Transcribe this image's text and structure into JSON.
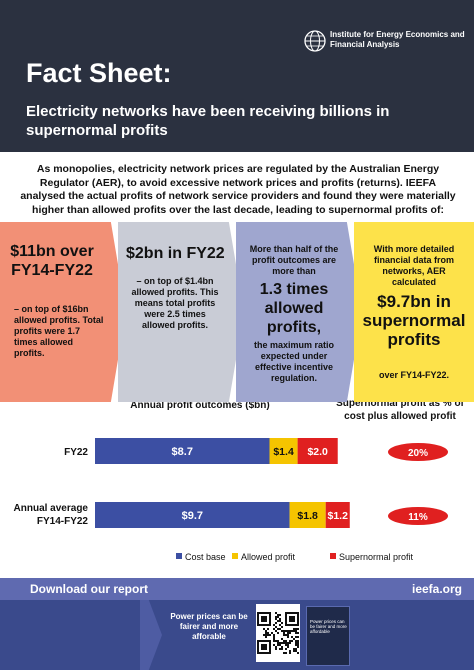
{
  "header": {
    "org": "Institute for Energy Economics and Financial Analysis",
    "title": "Fact Sheet:",
    "subtitle": "Electricity networks have been receiving billions in supernormal profits"
  },
  "intro": "As monopolies, electricity network prices are regulated by the Australian Energy Regulator (AER), to avoid excessive network prices and profits (returns). IEEFA analysed the actual profits of network service providers and found they were materially higher than allowed profits over the last decade, leading to supernormal profits of:",
  "panels": [
    {
      "big": "$11bn over FY14-FY22",
      "small": "– on top of $16bn allowed profits. Total profits were 1.7 times allowed profits."
    },
    {
      "big": "$2bn in FY22",
      "small": "– on top of $1.4bn allowed profits. This means total profits were 2.5 times allowed profits."
    },
    {
      "text1": "More than half of the profit outcomes are more than",
      "big": "1.3 times allowed profits,",
      "text2": "the maximum ratio expected under effective incentive regulation."
    },
    {
      "text1": "With more detailed financial data from networks, AER calculated",
      "big": "$9.7bn in supernormal profits",
      "text2": "over FY14-FY22."
    }
  ],
  "colors": {
    "cost": "#3c4fa3",
    "allowed": "#f5c400",
    "supernormal": "#e02020",
    "header_bg": "#2b3140"
  },
  "chart_data": {
    "type": "bar",
    "orientation": "horizontal",
    "stacked": true,
    "title": "Annual profit outcomes ($bn)",
    "categories": [
      "FY22",
      "Annual average FY14-FY22"
    ],
    "series": [
      {
        "name": "Cost base",
        "values": [
          8.7,
          9.7
        ],
        "labels": [
          "$8.7",
          "$9.7"
        ],
        "color": "#3c4fa3"
      },
      {
        "name": "Allowed profit",
        "values": [
          1.4,
          1.8
        ],
        "labels": [
          "$1.4",
          "$1.8"
        ],
        "color": "#f5c400"
      },
      {
        "name": "Supernormal profit",
        "values": [
          2.0,
          1.2
        ],
        "labels": [
          "$2.0",
          "$1.2"
        ],
        "color": "#e02020"
      }
    ],
    "side_title": "Supernormal profit as % of cost plus allowed profit",
    "side_values": [
      "20%",
      "11%"
    ],
    "legend_position": "bottom"
  },
  "footer": {
    "download": "Download our report",
    "site": "ieefa.org",
    "promo": "Power prices can be fairer and more afforable",
    "report_title": "Power prices can be fairer and more affordable"
  }
}
